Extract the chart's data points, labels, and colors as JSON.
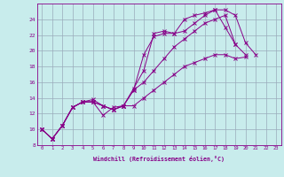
{
  "xlabel": "Windchill (Refroidissement éolien,°C)",
  "ylabel": "",
  "background_color": "#c8ecec",
  "line_color": "#880088",
  "grid_color": "#99aabb",
  "xlim": [
    -0.5,
    23.5
  ],
  "ylim": [
    8,
    26
  ],
  "xticks": [
    0,
    1,
    2,
    3,
    4,
    5,
    6,
    7,
    8,
    9,
    10,
    11,
    12,
    13,
    14,
    15,
    16,
    17,
    18,
    19,
    20,
    21,
    22,
    23
  ],
  "yticks": [
    8,
    10,
    12,
    14,
    16,
    18,
    20,
    22,
    24
  ],
  "lines": [
    [
      10.0,
      8.8,
      10.5,
      12.8,
      13.5,
      13.5,
      13.0,
      12.5,
      13.0,
      15.0,
      19.5,
      21.8,
      22.2,
      22.2,
      22.5,
      23.5,
      24.5,
      25.2,
      25.2,
      24.5,
      21.0,
      19.5,
      null,
      null
    ],
    [
      10.0,
      8.8,
      10.5,
      12.8,
      13.5,
      13.5,
      11.8,
      12.8,
      13.0,
      15.2,
      17.5,
      22.2,
      22.5,
      22.2,
      24.0,
      24.5,
      24.8,
      25.2,
      23.0,
      20.8,
      19.5,
      null,
      null,
      null
    ],
    [
      10.0,
      8.8,
      10.5,
      12.8,
      13.5,
      13.5,
      13.0,
      12.5,
      13.0,
      15.0,
      16.0,
      17.5,
      19.0,
      20.5,
      21.5,
      22.5,
      23.5,
      24.0,
      24.5,
      20.8,
      null,
      null,
      null,
      null
    ],
    [
      10.0,
      8.8,
      10.5,
      12.8,
      13.5,
      13.8,
      13.0,
      12.5,
      13.0,
      13.0,
      14.0,
      15.0,
      16.0,
      17.0,
      18.0,
      18.5,
      19.0,
      19.5,
      19.5,
      19.0,
      19.2,
      null,
      null,
      null
    ]
  ]
}
